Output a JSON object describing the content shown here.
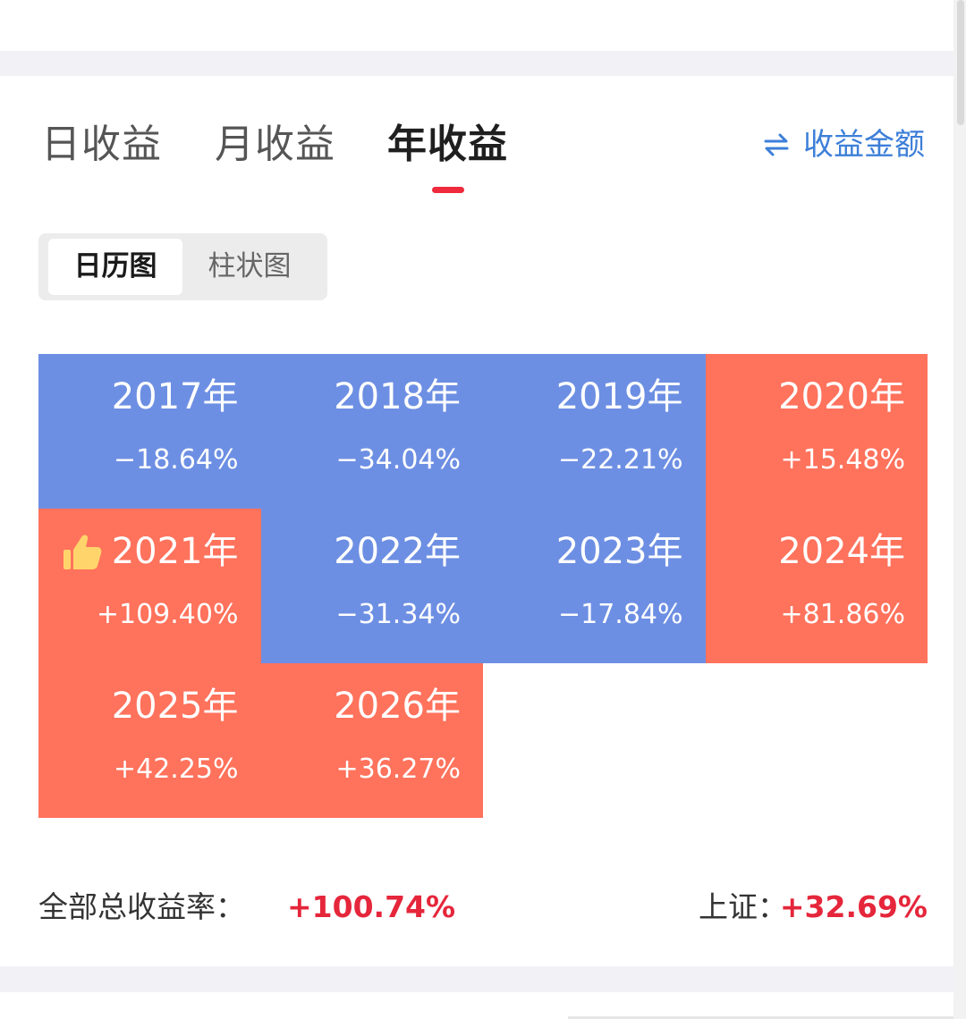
{
  "tabs": [
    {
      "label": "日收益",
      "active": false
    },
    {
      "label": "月收益",
      "active": false
    },
    {
      "label": "年收益",
      "active": true
    }
  ],
  "switch_mode": {
    "label": "收益金额",
    "icon": "swap-arrows-icon"
  },
  "view_toggle": {
    "options": [
      "日历图",
      "柱状图"
    ],
    "selected": "日历图"
  },
  "colors": {
    "negative": "#6d8fe3",
    "positive": "#ff725c",
    "accent_red": "#ee2a3c",
    "link_blue": "#3d7fd8"
  },
  "chart_data": {
    "type": "heatmap",
    "cells": [
      {
        "year": "2017年",
        "rate": "−18.64%",
        "value": -18.64,
        "best": false
      },
      {
        "year": "2018年",
        "rate": "−34.04%",
        "value": -34.04,
        "best": false
      },
      {
        "year": "2019年",
        "rate": "−22.21%",
        "value": -22.21,
        "best": false
      },
      {
        "year": "2020年",
        "rate": "+15.48%",
        "value": 15.48,
        "best": false
      },
      {
        "year": "2021年",
        "rate": "+109.40%",
        "value": 109.4,
        "best": true
      },
      {
        "year": "2022年",
        "rate": "−31.34%",
        "value": -31.34,
        "best": false
      },
      {
        "year": "2023年",
        "rate": "−17.84%",
        "value": -17.84,
        "best": false
      },
      {
        "year": "2024年",
        "rate": "+81.86%",
        "value": 81.86,
        "best": false
      },
      {
        "year": "2025年",
        "rate": "+42.25%",
        "value": 42.25,
        "best": false
      },
      {
        "year": "2026年",
        "rate": "+36.27%",
        "value": 36.27,
        "best": false
      }
    ]
  },
  "summary": {
    "total_label": "全部总收益率：",
    "total_value": "+100.74%",
    "index_label": "上证：",
    "index_value": "+32.69%"
  }
}
